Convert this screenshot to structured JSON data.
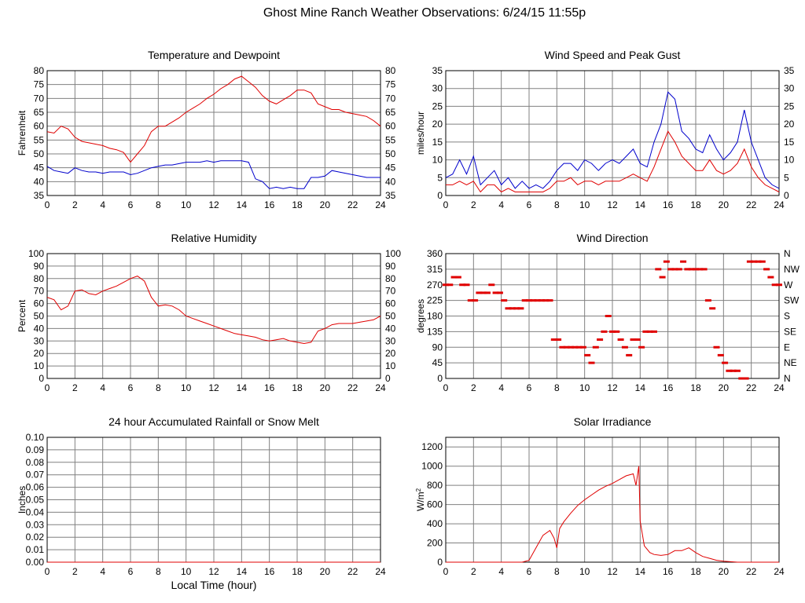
{
  "page": {
    "title": "Ghost Mine Ranch Weather Observations: 6/24/15 11:55p"
  },
  "colors": {
    "red": "#e00000",
    "blue": "#0000cc",
    "grid": "#808080",
    "background": "#ffffff"
  },
  "chart_data": [
    {
      "id": "temp",
      "type": "line",
      "title": "Temperature and Dewpoint",
      "xlabel": "",
      "ylabel": "Fahrenheit",
      "xlim": [
        0,
        24
      ],
      "ylim": [
        35,
        80
      ],
      "xticks": [
        0,
        2,
        4,
        6,
        8,
        10,
        12,
        14,
        16,
        18,
        20,
        22,
        24
      ],
      "yticks": [
        35,
        40,
        45,
        50,
        55,
        60,
        65,
        70,
        75,
        80
      ],
      "right_axis_ticks": [
        "35",
        "40",
        "45",
        "50",
        "55",
        "60",
        "65",
        "70",
        "75",
        "80"
      ],
      "grid": true,
      "series": [
        {
          "color": "#e00000",
          "x": [
            0,
            0.5,
            1,
            1.5,
            2,
            2.5,
            3,
            3.5,
            4,
            4.5,
            5,
            5.5,
            6,
            6.5,
            7,
            7.5,
            8,
            8.5,
            9,
            9.5,
            10,
            10.5,
            11,
            11.5,
            12,
            12.5,
            13,
            13.5,
            14,
            14.5,
            15,
            15.5,
            16,
            16.5,
            17,
            17.5,
            18,
            18.5,
            19,
            19.5,
            20,
            20.5,
            21,
            21.5,
            22,
            22.5,
            23,
            23.5,
            24
          ],
          "y": [
            58,
            57.5,
            60,
            59,
            56,
            54.5,
            54,
            53.5,
            53,
            52,
            51.5,
            50.5,
            47,
            50,
            53,
            58,
            60,
            60,
            61.5,
            63,
            65,
            66.5,
            68,
            70,
            71.5,
            73.5,
            75,
            77,
            78,
            76,
            74,
            71,
            69,
            68,
            69.5,
            71,
            73,
            73,
            72,
            68,
            67,
            66,
            66,
            65,
            64.5,
            64,
            63.5,
            62,
            60
          ]
        },
        {
          "color": "#0000cc",
          "x": [
            0,
            0.5,
            1,
            1.5,
            2,
            2.5,
            3,
            3.5,
            4,
            4.5,
            5,
            5.5,
            6,
            6.5,
            7,
            7.5,
            8,
            8.5,
            9,
            9.5,
            10,
            10.5,
            11,
            11.5,
            12,
            12.5,
            13,
            13.5,
            14,
            14.5,
            15,
            15.5,
            16,
            16.5,
            17,
            17.5,
            18,
            18.5,
            19,
            19.5,
            20,
            20.5,
            21,
            21.5,
            22,
            22.5,
            23,
            23.5,
            24
          ],
          "y": [
            45.5,
            44,
            43.5,
            43,
            45,
            44,
            43.5,
            43.5,
            43,
            43.5,
            43.5,
            43.5,
            42.5,
            43,
            44,
            45,
            45.5,
            46,
            46,
            46.5,
            47,
            47,
            47,
            47.5,
            47,
            47.5,
            47.5,
            47.5,
            47.5,
            47,
            41,
            40,
            37.5,
            38,
            37.5,
            38,
            37.5,
            37.5,
            41.5,
            41.5,
            42,
            44,
            43.5,
            43,
            42.5,
            42,
            41.5,
            41.5,
            41.5
          ]
        }
      ]
    },
    {
      "id": "wind",
      "type": "line",
      "title": "Wind Speed and Peak Gust",
      "xlabel": "",
      "ylabel": "miles/hour",
      "xlim": [
        0,
        24
      ],
      "ylim": [
        0,
        35
      ],
      "xticks": [
        0,
        2,
        4,
        6,
        8,
        10,
        12,
        14,
        16,
        18,
        20,
        22,
        24
      ],
      "yticks": [
        0,
        5,
        10,
        15,
        20,
        25,
        30,
        35
      ],
      "right_axis_ticks": [
        "0",
        "5",
        "10",
        "15",
        "20",
        "25",
        "30",
        "35"
      ],
      "grid": true,
      "series": [
        {
          "color": "#0000cc",
          "x": [
            0,
            0.5,
            1,
            1.5,
            2,
            2.5,
            3,
            3.5,
            4,
            4.5,
            5,
            5.5,
            6,
            6.5,
            7,
            7.5,
            8,
            8.5,
            9,
            9.5,
            10,
            10.5,
            11,
            11.5,
            12,
            12.5,
            13,
            13.5,
            14,
            14.5,
            15,
            15.5,
            16,
            16.5,
            17,
            17.5,
            18,
            18.5,
            19,
            19.5,
            20,
            20.5,
            21,
            21.5,
            22,
            22.5,
            23,
            23.5,
            24
          ],
          "y": [
            5,
            6,
            10,
            6,
            11,
            3,
            5,
            7,
            3,
            5,
            2,
            4,
            2,
            3,
            2,
            4,
            7,
            9,
            9,
            7,
            10,
            9,
            7,
            9,
            10,
            9,
            11,
            13,
            9,
            8,
            15,
            20,
            29,
            27,
            18,
            16,
            13,
            12,
            17,
            13,
            10,
            12,
            15,
            24,
            15,
            10,
            5,
            3,
            2
          ]
        },
        {
          "color": "#e00000",
          "x": [
            0,
            0.5,
            1,
            1.5,
            2,
            2.5,
            3,
            3.5,
            4,
            4.5,
            5,
            5.5,
            6,
            6.5,
            7,
            7.5,
            8,
            8.5,
            9,
            9.5,
            10,
            10.5,
            11,
            11.5,
            12,
            12.5,
            13,
            13.5,
            14,
            14.5,
            15,
            15.5,
            16,
            16.5,
            17,
            17.5,
            18,
            18.5,
            19,
            19.5,
            20,
            20.5,
            21,
            21.5,
            22,
            22.5,
            23,
            23.5,
            24
          ],
          "y": [
            3,
            3,
            4,
            3,
            4,
            1,
            3,
            3,
            1,
            2,
            1,
            1,
            1,
            1,
            1,
            2,
            4,
            4,
            5,
            3,
            4,
            4,
            3,
            4,
            4,
            4,
            5,
            6,
            5,
            4,
            8,
            13,
            18,
            15,
            11,
            9,
            7,
            7,
            10,
            7,
            6,
            7,
            9,
            13,
            8,
            5,
            3,
            2,
            1
          ]
        }
      ]
    },
    {
      "id": "rh",
      "type": "line",
      "title": "Relative Humidity",
      "xlabel": "",
      "ylabel": "Percent",
      "xlim": [
        0,
        24
      ],
      "ylim": [
        0,
        100
      ],
      "xticks": [
        0,
        2,
        4,
        6,
        8,
        10,
        12,
        14,
        16,
        18,
        20,
        22,
        24
      ],
      "yticks": [
        0,
        10,
        20,
        30,
        40,
        50,
        60,
        70,
        80,
        90,
        100
      ],
      "right_axis_ticks": [
        "0",
        "10",
        "20",
        "30",
        "40",
        "50",
        "60",
        "70",
        "80",
        "90",
        "100"
      ],
      "grid": true,
      "series": [
        {
          "color": "#e00000",
          "x": [
            0,
            0.5,
            1,
            1.5,
            2,
            2.5,
            3,
            3.5,
            4,
            4.5,
            5,
            5.5,
            6,
            6.5,
            7,
            7.5,
            8,
            8.5,
            9,
            9.5,
            10,
            10.5,
            11,
            11.5,
            12,
            12.5,
            13,
            13.5,
            14,
            14.5,
            15,
            15.5,
            16,
            16.5,
            17,
            17.5,
            18,
            18.5,
            19,
            19.5,
            20,
            20.5,
            21,
            21.5,
            22,
            22.5,
            23,
            23.5,
            24
          ],
          "y": [
            65,
            63,
            55,
            58,
            70,
            71,
            68,
            67,
            70,
            72,
            74,
            77,
            80,
            82,
            78,
            65,
            58,
            59,
            58,
            55,
            50,
            48,
            46,
            44,
            42,
            40,
            38,
            36,
            35,
            34,
            33,
            31,
            30,
            31,
            32,
            30,
            29,
            28,
            29,
            38,
            40,
            43,
            44,
            44,
            44,
            45,
            46,
            47,
            50
          ]
        }
      ]
    },
    {
      "id": "dir",
      "type": "scatter",
      "title": "Wind Direction",
      "xlabel": "",
      "ylabel": "degrees",
      "xlim": [
        0,
        24
      ],
      "ylim": [
        0,
        360
      ],
      "xticks": [
        0,
        2,
        4,
        6,
        8,
        10,
        12,
        14,
        16,
        18,
        20,
        22,
        24
      ],
      "yticks": [
        0,
        45,
        90,
        135,
        180,
        225,
        270,
        315,
        360
      ],
      "right_axis_ticks": [
        "N",
        "NE",
        "E",
        "SE",
        "S",
        "SW",
        "W",
        "NW",
        "N"
      ],
      "grid": true,
      "series": [
        {
          "color": "#e00000",
          "x": [
            0,
            0.3,
            0.6,
            0.9,
            1.2,
            1.5,
            1.8,
            2.1,
            2.4,
            2.7,
            3,
            3.3,
            3.6,
            3.9,
            4.2,
            4.5,
            4.8,
            5.1,
            5.4,
            5.7,
            6,
            6.3,
            6.6,
            6.9,
            7.2,
            7.5,
            7.8,
            8.1,
            8.4,
            8.7,
            9,
            9.3,
            9.6,
            9.9,
            10.2,
            10.5,
            10.8,
            11.1,
            11.4,
            11.7,
            12,
            12.3,
            12.6,
            12.9,
            13.2,
            13.5,
            13.8,
            14.1,
            14.4,
            14.7,
            15,
            15.3,
            15.6,
            15.9,
            16.2,
            16.5,
            16.8,
            17.1,
            17.4,
            17.7,
            18,
            18.3,
            18.6,
            18.9,
            19.2,
            19.5,
            19.8,
            20.1,
            20.4,
            20.7,
            21,
            21.3,
            21.6,
            21.9,
            22.2,
            22.5,
            22.8,
            23.1,
            23.4,
            23.7,
            24
          ],
          "y": [
            270,
            270,
            292,
            292,
            270,
            270,
            225,
            225,
            247,
            247,
            247,
            270,
            247,
            247,
            225,
            202,
            202,
            202,
            202,
            225,
            225,
            225,
            225,
            225,
            225,
            225,
            112,
            112,
            90,
            90,
            90,
            90,
            90,
            90,
            67,
            45,
            90,
            112,
            135,
            180,
            135,
            135,
            112,
            90,
            67,
            112,
            112,
            90,
            135,
            135,
            135,
            315,
            292,
            337,
            315,
            315,
            315,
            337,
            315,
            315,
            315,
            315,
            315,
            225,
            202,
            90,
            67,
            45,
            22,
            22,
            22,
            0,
            0,
            337,
            337,
            337,
            337,
            315,
            292,
            270,
            270
          ]
        }
      ]
    },
    {
      "id": "rain",
      "type": "line",
      "title": "24 hour Accumulated Rainfall or Snow Melt",
      "xlabel": "Local Time (hour)",
      "ylabel": "Inches",
      "xlim": [
        0,
        24
      ],
      "ylim": [
        0,
        0.1
      ],
      "xticks": [
        0,
        2,
        4,
        6,
        8,
        10,
        12,
        14,
        16,
        18,
        20,
        22,
        24
      ],
      "yticks": [
        0,
        0.01,
        0.02,
        0.03,
        0.04,
        0.05,
        0.06,
        0.07,
        0.08,
        0.09,
        0.1
      ],
      "ytick_labels": [
        "0.00",
        "0.01",
        "0.02",
        "0.03",
        "0.04",
        "0.05",
        "0.06",
        "0.07",
        "0.08",
        "0.09",
        "0.10"
      ],
      "grid": true,
      "series": [
        {
          "color": "#e00000",
          "x": [
            0,
            24
          ],
          "y": [
            0,
            0
          ]
        }
      ]
    },
    {
      "id": "solar",
      "type": "line",
      "title": "Solar Irradiance",
      "xlabel": "",
      "ylabel": "W/m",
      "ylabel_sup": "2",
      "xlim": [
        0,
        24
      ],
      "ylim": [
        0,
        1300
      ],
      "xticks": [
        0,
        2,
        4,
        6,
        8,
        10,
        12,
        14,
        16,
        18,
        20,
        22,
        24
      ],
      "yticks": [
        0,
        200,
        400,
        600,
        800,
        1000,
        1200
      ],
      "grid": true,
      "series": [
        {
          "color": "#e00000",
          "x": [
            0,
            5.5,
            6,
            6.5,
            7,
            7.5,
            7.8,
            8,
            8.2,
            8.5,
            9,
            9.5,
            10,
            10.5,
            11,
            11.5,
            12,
            12.5,
            13,
            13.5,
            13.7,
            13.9,
            14,
            14.3,
            14.7,
            15,
            15.5,
            16,
            16.5,
            17,
            17.5,
            18,
            18.5,
            19,
            19.5,
            20,
            20.5,
            21,
            24
          ],
          "y": [
            0,
            0,
            20,
            150,
            280,
            330,
            250,
            150,
            350,
            420,
            510,
            590,
            650,
            700,
            750,
            790,
            820,
            860,
            900,
            920,
            800,
            1000,
            430,
            170,
            100,
            80,
            70,
            80,
            120,
            120,
            150,
            100,
            60,
            40,
            20,
            10,
            5,
            0,
            0
          ]
        }
      ]
    }
  ]
}
